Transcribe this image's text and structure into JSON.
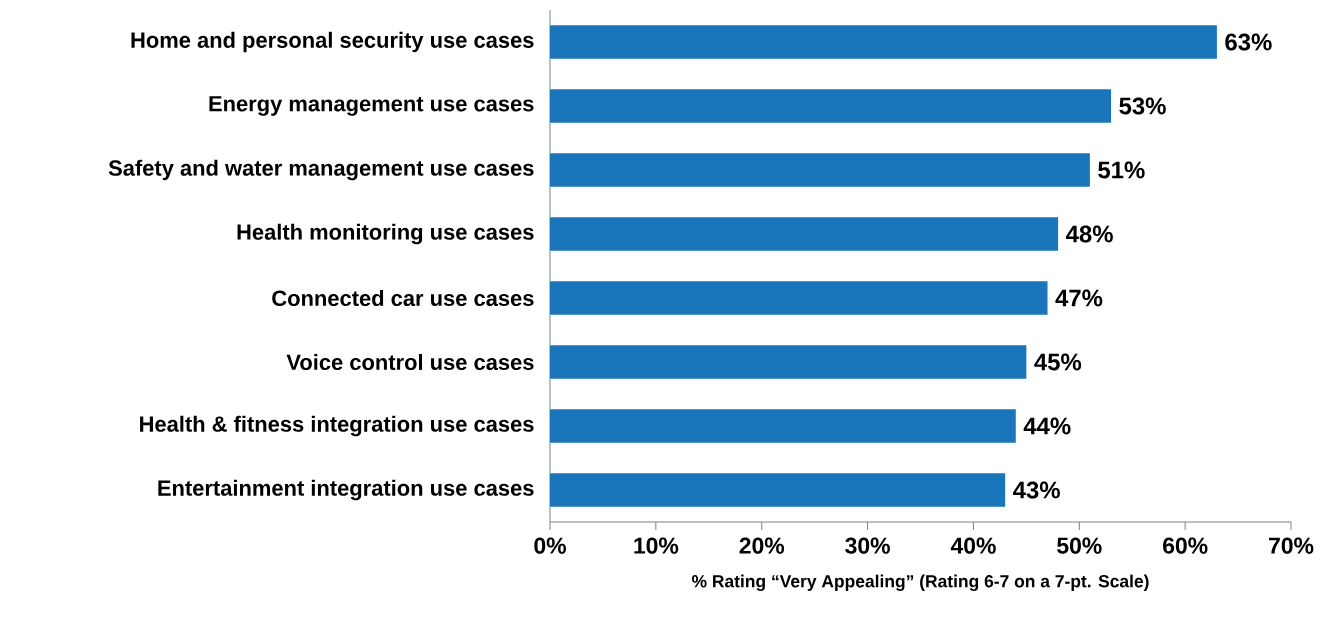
{
  "chart_data": {
    "type": "bar",
    "orientation": "horizontal",
    "categories": [
      "Home and personal security use cases",
      "Energy management use cases",
      "Safety and water management use cases",
      "Health monitoring use cases",
      "Connected car use cases",
      "Voice control use cases",
      "Health & fitness integration use cases",
      "Entertainment integration use cases"
    ],
    "values": [
      63,
      53,
      51,
      48,
      47,
      45,
      44,
      43
    ],
    "value_labels": [
      "63%",
      "53%",
      "51%",
      "48%",
      "47%",
      "45%",
      "44%",
      "43%"
    ],
    "color": "#1b75bb",
    "xlim": [
      0,
      70
    ],
    "xticks": [
      {
        "value": 0,
        "label": "0%"
      },
      {
        "value": 10,
        "label": "10%"
      },
      {
        "value": 20,
        "label": "20%"
      },
      {
        "value": 30,
        "label": "30%"
      },
      {
        "value": 40,
        "label": "40%"
      },
      {
        "value": 50,
        "label": "50%"
      },
      {
        "value": 60,
        "label": "60%"
      },
      {
        "value": 70,
        "label": "70%"
      }
    ],
    "xlabel": "% Rating “Very Appealing” (Rating 6-7 on a 7-pt. Scale)"
  }
}
